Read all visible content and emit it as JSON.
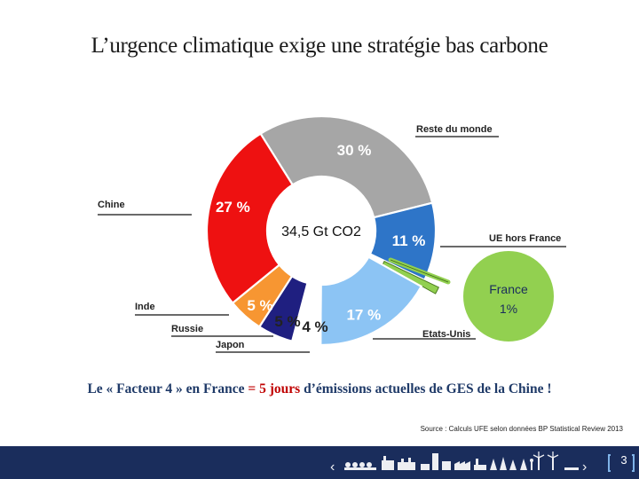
{
  "slide": {
    "title": "L’urgence climatique exige une stratégie bas carbone",
    "headline_part1": "Le « Facteur 4 » en France ",
    "headline_eq": "= 5 jours",
    "headline_part2": " d’émissions actuelles de GES de la Chine !",
    "source": "Source : Calculs UFE selon données BP Statistical Review 2013",
    "page_number": "3"
  },
  "chart_data": {
    "type": "pie",
    "variant": "donut",
    "center_label": "34,5 Gt CO2",
    "slices": [
      {
        "name": "Reste du monde",
        "value": 30,
        "label": "30 %",
        "color": "#a6a6a6"
      },
      {
        "name": "UE hors France",
        "value": 11,
        "label": "11 %",
        "color": "#2e75c8"
      },
      {
        "name": "France",
        "value": 1,
        "label": "1%",
        "color": "#92d050"
      },
      {
        "name": "Etats-Unis",
        "value": 17,
        "label": "17 %",
        "color": "#8cc4f4"
      },
      {
        "name": "Japon",
        "value": 4,
        "label": "4 %",
        "color": "#ffffff"
      },
      {
        "name": "Russie",
        "value": 5,
        "label": "5 %",
        "color": "#1f1f80"
      },
      {
        "name": "Inde",
        "value": 5,
        "label": "5 %",
        "color": "#f79632"
      },
      {
        "name": "Chine",
        "value": 27,
        "label": "27 %",
        "color": "#ee1111"
      }
    ],
    "callout": {
      "name": "France",
      "value": "1%",
      "color": "#92d050"
    }
  },
  "colors": {
    "title": "#1a1a1a",
    "headline": "#1f3a68",
    "headline_accent": "#c00000",
    "footer": "#1a2d5c"
  }
}
